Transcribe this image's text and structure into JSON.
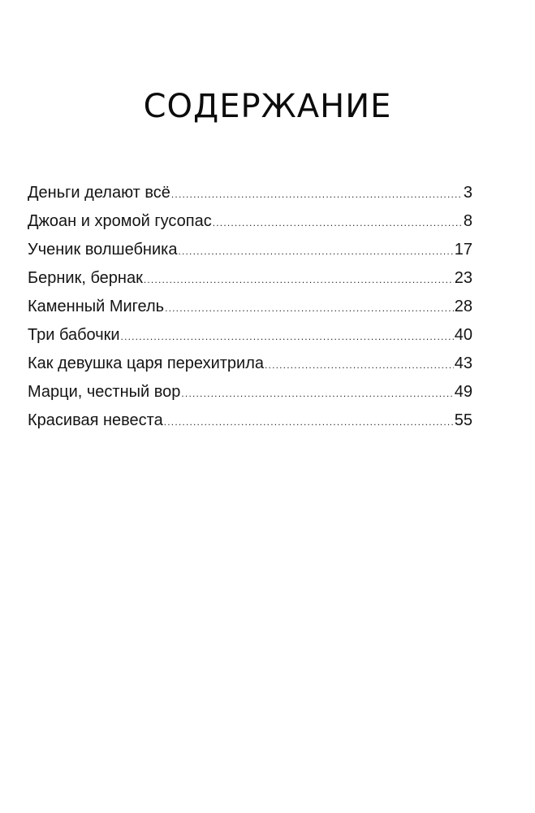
{
  "title": "СОДЕРЖАНИЕ",
  "entries": [
    {
      "title": "Деньги делают всё",
      "page": "3"
    },
    {
      "title": "Джоан и хромой гусопас",
      "page": "8"
    },
    {
      "title": "Ученик волшебника",
      "page": "17"
    },
    {
      "title": "Берник, бернак",
      "page": "23"
    },
    {
      "title": "Каменный Мигель",
      "page": "28"
    },
    {
      "title": "Три бабочки",
      "page": "40"
    },
    {
      "title": "Как девушка царя перехитрила",
      "page": "43"
    },
    {
      "title": "Марци, честный вор",
      "page": "49"
    },
    {
      "title": "Красивая невеста",
      "page": "55"
    }
  ]
}
